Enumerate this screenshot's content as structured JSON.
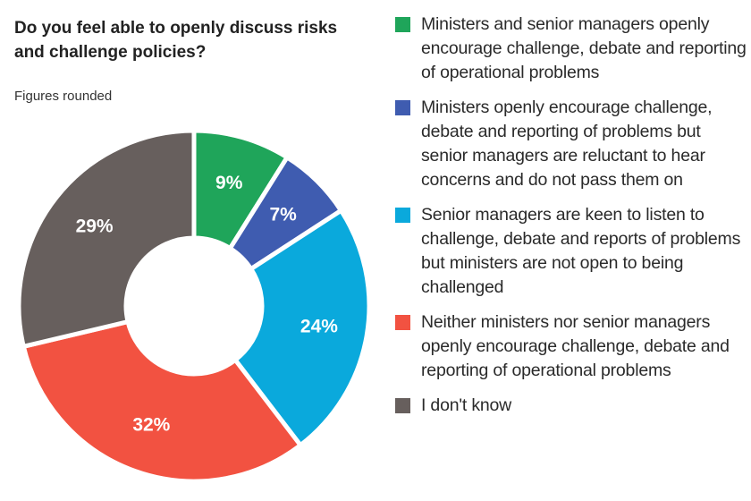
{
  "header": {
    "title": "Do you feel able to openly discuss risks and challenge policies?",
    "subtitle": "Figures rounded"
  },
  "chart_data": {
    "type": "pie",
    "variant": "donut",
    "title": "Do you feel able to openly discuss risks and challenge policies?",
    "subtitle": "Figures rounded",
    "start": "12 o'clock, clockwise",
    "legend_position": "right",
    "slices": [
      {
        "label": "Ministers and senior managers openly encourage challenge, debate and reporting of operational problems",
        "value": 9,
        "display": "9%",
        "color": "#1fa55a"
      },
      {
        "label": "Ministers openly encourage challenge, debate and reporting of problems but senior managers are reluctant to hear concerns and do not pass them on",
        "value": 7,
        "display": "7%",
        "color": "#3f5cb0"
      },
      {
        "label": "Senior managers are keen to listen to challenge, debate and reports of problems but ministers are not open to being challenged",
        "value": 24,
        "display": "24%",
        "color": "#0aa9dc"
      },
      {
        "label": "Neither ministers nor senior managers openly encourage challenge, debate and reporting of operational problems",
        "value": 32,
        "display": "32%",
        "color": "#f25241"
      },
      {
        "label": "I don't know",
        "value": 29,
        "display": "29%",
        "color": "#675f5d"
      }
    ]
  }
}
